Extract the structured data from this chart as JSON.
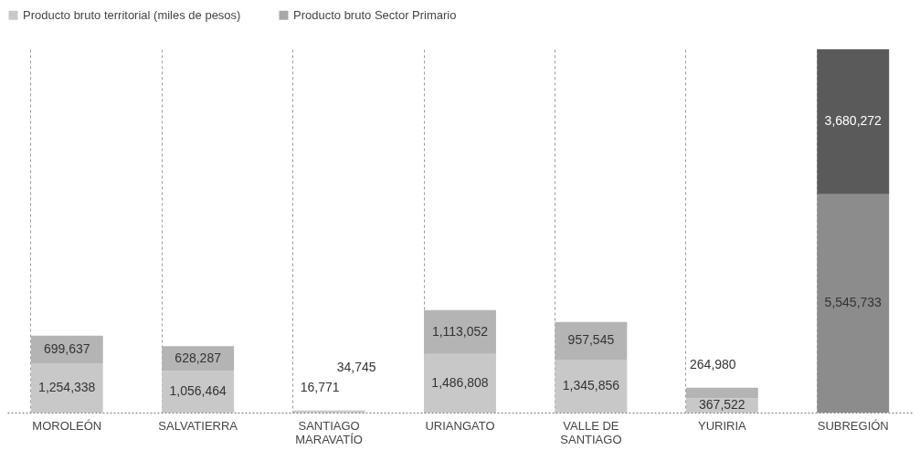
{
  "chart_data": {
    "type": "bar",
    "stacked": true,
    "grid": "x",
    "legend": "top",
    "categories": [
      "MOROLEÓN",
      "SALVATIERRA",
      "SANTIAGO MARAVATÍO",
      "URIANGATO",
      "VALLE DE SANTIAGO",
      "YURIRIA",
      "SUBREGIÓN"
    ],
    "series": [
      {
        "name": "Producto bruto territorial (miles de pesos)",
        "color": "#c8c8c8",
        "colors": [
          "#c8c8c8",
          "#c8c8c8",
          "#c8c8c8",
          "#c8c8c8",
          "#c8c8c8",
          "#c8c8c8",
          "#8c8c8c"
        ],
        "values": [
          1254338,
          1056464,
          34745,
          1486808,
          1345856,
          367522,
          5545733
        ],
        "value_labels": [
          "1,254,338",
          "1,056,464",
          "34,745",
          "1,486,808",
          "1,345,856",
          "367,522",
          "5,545,733"
        ]
      },
      {
        "name": "Producto bruto Sector Primario",
        "color": "#a8a8a8",
        "colors": [
          "#b4b4b4",
          "#b4b4b4",
          "#b4b4b4",
          "#b4b4b4",
          "#b4b4b4",
          "#b4b4b4",
          "#5a5a5a"
        ],
        "values": [
          699637,
          628287,
          16771,
          1113052,
          957545,
          264980,
          3680272
        ],
        "value_labels": [
          "699,637",
          "628,287",
          "16,771",
          "1,113,052",
          "957,545",
          "264,980",
          "3,680,272"
        ]
      }
    ]
  }
}
